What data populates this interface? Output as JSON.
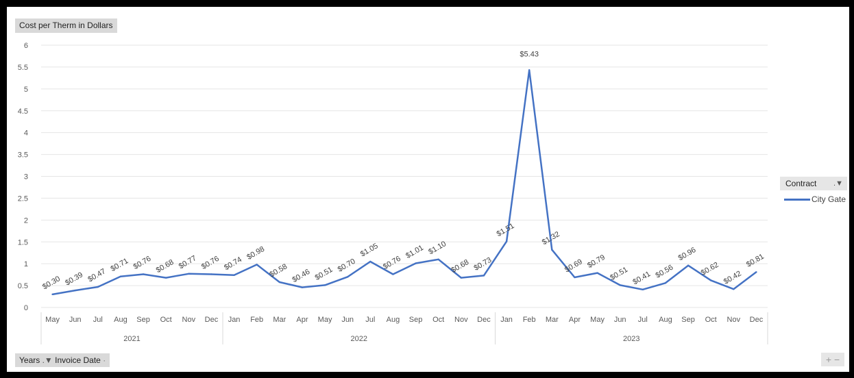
{
  "y_axis_button": "Cost per Therm in Dollars",
  "legend": {
    "title": "Contract",
    "filter_icon": "filter-icon",
    "item": "City Gate"
  },
  "field_buttons": {
    "years": "Years",
    "invoice_date": "Invoice Date"
  },
  "zoom_controls": "+ −",
  "chart_data": {
    "type": "line",
    "ylim": [
      0,
      6
    ],
    "yticks": [
      "0",
      "0.5",
      "1",
      "1.5",
      "2",
      "2.5",
      "3",
      "3.5",
      "4",
      "4.5",
      "5",
      "5.5",
      "6"
    ],
    "grid": "horizontal",
    "legend_position": "right",
    "categories": [
      "May",
      "Jun",
      "Jul",
      "Aug",
      "Sep",
      "Oct",
      "Nov",
      "Dec",
      "Jan",
      "Feb",
      "Mar",
      "Apr",
      "May",
      "Jun",
      "Jul",
      "Aug",
      "Sep",
      "Oct",
      "Nov",
      "Dec",
      "Jan",
      "Feb",
      "Mar",
      "Apr",
      "May",
      "Jun",
      "Jul",
      "Aug",
      "Sep",
      "Oct",
      "Nov",
      "Dec"
    ],
    "groups": [
      {
        "label": "2021",
        "count": 8
      },
      {
        "label": "2022",
        "count": 12
      },
      {
        "label": "2023",
        "count": 12
      }
    ],
    "series": [
      {
        "name": "City Gate",
        "color": "#4472c4",
        "values": [
          0.3,
          0.39,
          0.47,
          0.71,
          0.76,
          0.68,
          0.77,
          0.76,
          0.74,
          0.98,
          0.58,
          0.46,
          0.51,
          0.7,
          1.05,
          0.76,
          1.01,
          1.1,
          0.68,
          0.73,
          1.51,
          5.43,
          1.32,
          0.69,
          0.79,
          0.51,
          0.41,
          0.56,
          0.96,
          0.62,
          0.42,
          0.81
        ],
        "labels": [
          "$0.30",
          "$0.39",
          "$0.47",
          "$0.71",
          "$0.76",
          "$0.68",
          "$0.77",
          "$0.76",
          "$0.74",
          "$0.98",
          "$0.58",
          "$0.46",
          "$0.51",
          "$0.70",
          "$1.05",
          "$0.76",
          "$1.01",
          "$1.10",
          "$0.68",
          "$0.73",
          "$1.51",
          "$5.43",
          "$1.32",
          "$0.69",
          "$0.79",
          "$0.51",
          "$0.41",
          "$0.56",
          "$0.96",
          "$0.62",
          "$0.42",
          "$0.81"
        ]
      }
    ]
  }
}
